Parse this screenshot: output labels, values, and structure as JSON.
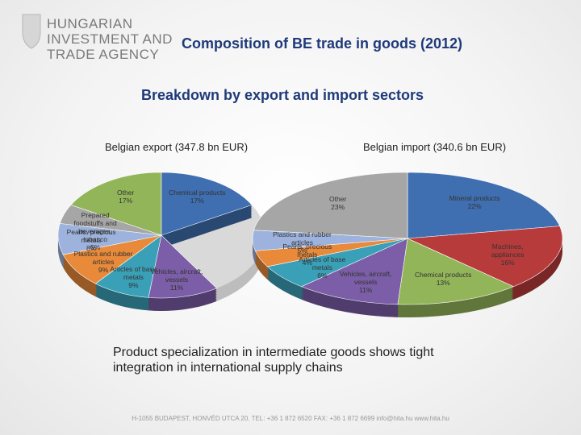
{
  "header": {
    "logo_lines": [
      "HUNGARIAN",
      "INVESTMENT AND",
      "TRADE AGENCY"
    ],
    "title": "Composition of BE trade in goods (2012)"
  },
  "subtitle": "Breakdown by export and import sectors",
  "chart_data": [
    {
      "type": "pie",
      "title": "Belgian export (347.8 bn EUR)",
      "categories": [
        "Vehicles, aircraft, vessels",
        "Articles of base metals",
        "Plastics and rubber articles",
        "Pearls, precious metals",
        "Prepared foodstuffs and beverages, tobacco",
        "Other",
        "Chemical products"
      ],
      "values": [
        11,
        9,
        9,
        8,
        5,
        17,
        17
      ],
      "value_labels": [
        "11%",
        "9%",
        "9%",
        "8%",
        "5%",
        "17%",
        "17%"
      ],
      "colors": [
        "#7b5ea7",
        "#3aa0b8",
        "#e88a3a",
        "#9db3dd",
        "#a6a6a6",
        "#93b55a",
        "#3f6fb0"
      ]
    },
    {
      "type": "pie",
      "title": "Belgian import (340.6 bn EUR)",
      "categories": [
        "Mineral products",
        "Machines, appliances",
        "Chemical products",
        "Vehicles, aircraft, vessels",
        "Articles of base metals",
        "Pearls, precious metals",
        "Plastics and rubber articles",
        "Other"
      ],
      "values": [
        22,
        16,
        13,
        11,
        6,
        4,
        5,
        23
      ],
      "value_labels": [
        "22%",
        "16%",
        "13%",
        "11%",
        "6%",
        "4%",
        "5%",
        "23%"
      ],
      "colors": [
        "#3f6fb0",
        "#b83b3b",
        "#93b55a",
        "#7b5ea7",
        "#3aa0b8",
        "#e88a3a",
        "#9db3dd",
        "#a6a6a6"
      ]
    }
  ],
  "note": "Product specialization in intermediate goods shows tight integration in international supply chains",
  "footer": "H-1055 BUDAPEST, HONVÉD UTCA 20. TEL: +36 1 872 6520 FAX: +36 1 872 6699 info@hita.hu www.hita.hu"
}
